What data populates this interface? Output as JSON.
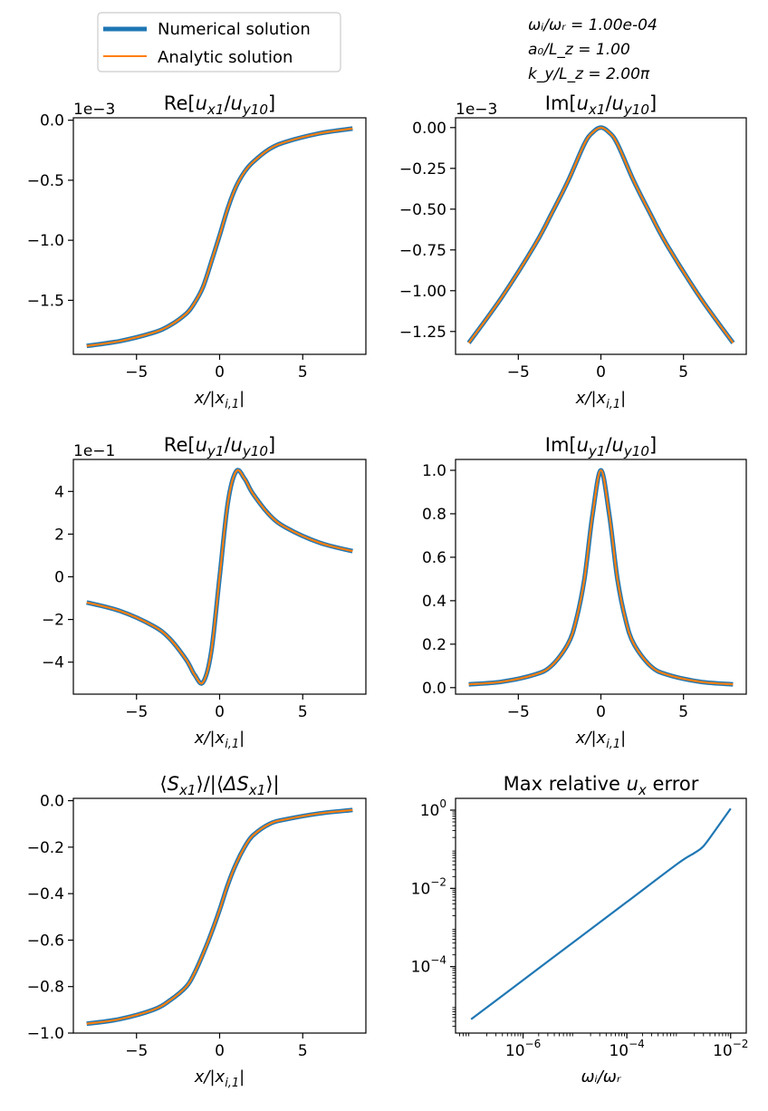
{
  "legend": {
    "items": [
      {
        "label": "Numerical solution",
        "color": "#1f77b4"
      },
      {
        "label": "Analytic solution",
        "color": "#ff7f0e"
      }
    ]
  },
  "params": [
    "ωᵢ/ωᵣ = 1.00e-04",
    "a₀/L_z = 1.00",
    "k_y/L_z = 2.00π"
  ],
  "colors": {
    "numerical": "#1f77b4",
    "analytic": "#ff7f0e"
  },
  "chart_data": [
    {
      "id": "re_ux",
      "type": "line",
      "title": "Re[u_x1/u_y10]",
      "xlabel": "x/|x_i,1|",
      "ylabel": "",
      "offset_label": "1e−3",
      "xlim": [
        -8.8,
        8.8
      ],
      "ylim": [
        -1.95,
        0.02
      ],
      "xticks": [
        -5,
        0,
        5
      ],
      "xtick_labels": [
        "−5",
        "0",
        "5"
      ],
      "yticks": [
        0.0,
        -0.5,
        -1.0,
        -1.5
      ],
      "ytick_labels": [
        "0.0",
        "−0.5",
        "−1.0",
        "−1.5"
      ],
      "x": [
        -8,
        -6,
        -4,
        -3,
        -2,
        -1.5,
        -1,
        -0.5,
        0,
        0.5,
        1,
        1.5,
        2,
        3,
        4,
        6,
        8
      ],
      "series": [
        {
          "name": "Numerical solution",
          "values": [
            -1.88,
            -1.84,
            -1.77,
            -1.71,
            -1.61,
            -1.52,
            -1.39,
            -1.18,
            -0.96,
            -0.73,
            -0.55,
            -0.43,
            -0.35,
            -0.24,
            -0.18,
            -0.11,
            -0.07
          ]
        },
        {
          "name": "Analytic solution",
          "values": [
            -1.88,
            -1.84,
            -1.77,
            -1.71,
            -1.61,
            -1.52,
            -1.39,
            -1.18,
            -0.96,
            -0.73,
            -0.55,
            -0.43,
            -0.35,
            -0.24,
            -0.18,
            -0.11,
            -0.07
          ]
        }
      ]
    },
    {
      "id": "im_ux",
      "type": "line",
      "title": "Im[u_x1/u_y10]",
      "xlabel": "x/|x_i,1|",
      "ylabel": "",
      "offset_label": "1e−3",
      "xlim": [
        -8.8,
        8.8
      ],
      "ylim": [
        -1.39,
        0.06
      ],
      "xticks": [
        -5,
        0,
        5
      ],
      "xtick_labels": [
        "−5",
        "0",
        "5"
      ],
      "yticks": [
        0.0,
        -0.25,
        -0.5,
        -0.75,
        -1.0,
        -1.25
      ],
      "ytick_labels": [
        "0.00",
        "−0.25",
        "−0.50",
        "−0.75",
        "−1.00",
        "−1.25"
      ],
      "x": [
        -8,
        -6,
        -4,
        -3,
        -2,
        -1,
        -0.5,
        0,
        0.5,
        1,
        2,
        3,
        4,
        6,
        8
      ],
      "series": [
        {
          "name": "Numerical solution",
          "values": [
            -1.32,
            -1.04,
            -0.72,
            -0.53,
            -0.33,
            -0.1,
            -0.03,
            0.0,
            -0.03,
            -0.1,
            -0.33,
            -0.53,
            -0.72,
            -1.04,
            -1.32
          ]
        },
        {
          "name": "Analytic solution",
          "values": [
            -1.32,
            -1.04,
            -0.72,
            -0.53,
            -0.33,
            -0.1,
            -0.03,
            0.0,
            -0.03,
            -0.1,
            -0.33,
            -0.53,
            -0.72,
            -1.04,
            -1.32
          ]
        }
      ]
    },
    {
      "id": "re_uy",
      "type": "line",
      "title": "Re[u_y1/u_y10]",
      "xlabel": "x/|x_i,1|",
      "ylabel": "",
      "offset_label": "1e−1",
      "xlim": [
        -8.8,
        8.8
      ],
      "ylim": [
        -5.5,
        5.5
      ],
      "xticks": [
        -5,
        0,
        5
      ],
      "xtick_labels": [
        "−5",
        "0",
        "5"
      ],
      "yticks": [
        4,
        2,
        0,
        -2,
        -4
      ],
      "ytick_labels": [
        "4",
        "2",
        "0",
        "−2",
        "−4"
      ],
      "x": [
        -8,
        -6,
        -4,
        -3,
        -2,
        -1.5,
        -1,
        -0.5,
        0,
        0.5,
        1,
        1.5,
        2,
        3,
        4,
        6,
        8
      ],
      "series": [
        {
          "name": "Numerical solution",
          "values": [
            -1.2,
            -1.6,
            -2.3,
            -2.9,
            -3.9,
            -4.6,
            -4.95,
            -3.5,
            0.0,
            3.5,
            4.95,
            4.6,
            3.9,
            2.9,
            2.3,
            1.6,
            1.2
          ]
        },
        {
          "name": "Analytic solution",
          "values": [
            -1.2,
            -1.6,
            -2.3,
            -2.9,
            -3.9,
            -4.6,
            -4.95,
            -3.5,
            0.0,
            3.5,
            4.95,
            4.6,
            3.9,
            2.9,
            2.3,
            1.6,
            1.2
          ]
        }
      ]
    },
    {
      "id": "im_uy",
      "type": "line",
      "title": "Im[u_y1/u_y10]",
      "xlabel": "x/|x_i,1|",
      "ylabel": "",
      "offset_label": "",
      "xlim": [
        -8.8,
        8.8
      ],
      "ylim": [
        -0.03,
        1.05
      ],
      "xticks": [
        -5,
        0,
        5
      ],
      "xtick_labels": [
        "−5",
        "0",
        "5"
      ],
      "yticks": [
        0.0,
        0.2,
        0.4,
        0.6,
        0.8,
        1.0
      ],
      "ytick_labels": [
        "0.0",
        "0.2",
        "0.4",
        "0.6",
        "0.8",
        "1.0"
      ],
      "x": [
        -8,
        -6,
        -4,
        -3,
        -2,
        -1.5,
        -1,
        -0.5,
        0,
        0.5,
        1,
        1.5,
        2,
        3,
        4,
        6,
        8
      ],
      "series": [
        {
          "name": "Numerical solution",
          "values": [
            0.015,
            0.027,
            0.06,
            0.1,
            0.2,
            0.31,
            0.5,
            0.8,
            1.0,
            0.8,
            0.5,
            0.31,
            0.2,
            0.1,
            0.06,
            0.027,
            0.015
          ]
        },
        {
          "name": "Analytic solution",
          "values": [
            0.015,
            0.027,
            0.06,
            0.1,
            0.2,
            0.31,
            0.5,
            0.8,
            1.0,
            0.8,
            0.5,
            0.31,
            0.2,
            0.1,
            0.06,
            0.027,
            0.015
          ]
        }
      ]
    },
    {
      "id": "poynting",
      "type": "line",
      "title": "⟨S_x1⟩/|⟨ΔS_x1⟩|",
      "xlabel": "x/|x_i,1|",
      "ylabel": "",
      "offset_label": "",
      "xlim": [
        -8.8,
        8.8
      ],
      "ylim": [
        -1.0,
        0.01
      ],
      "xticks": [
        -5,
        0,
        5
      ],
      "xtick_labels": [
        "−5",
        "0",
        "5"
      ],
      "yticks": [
        0.0,
        -0.2,
        -0.4,
        -0.6,
        -0.8,
        -1.0
      ],
      "ytick_labels": [
        "0.0",
        "−0.2",
        "−0.4",
        "−0.6",
        "−0.8",
        "−1.0"
      ],
      "x": [
        -8,
        -6,
        -4,
        -3,
        -2,
        -1.5,
        -1,
        -0.5,
        0,
        0.5,
        1,
        1.5,
        2,
        3,
        4,
        6,
        8
      ],
      "series": [
        {
          "name": "Numerical solution",
          "values": [
            -0.96,
            -0.94,
            -0.9,
            -0.86,
            -0.8,
            -0.74,
            -0.66,
            -0.57,
            -0.47,
            -0.36,
            -0.27,
            -0.2,
            -0.15,
            -0.1,
            -0.08,
            -0.055,
            -0.04
          ]
        },
        {
          "name": "Analytic solution",
          "values": [
            -0.96,
            -0.94,
            -0.9,
            -0.86,
            -0.8,
            -0.74,
            -0.66,
            -0.57,
            -0.47,
            -0.36,
            -0.27,
            -0.2,
            -0.15,
            -0.1,
            -0.08,
            -0.055,
            -0.04
          ]
        }
      ]
    },
    {
      "id": "max_error",
      "type": "line",
      "title": "Max relative u_x error",
      "xlabel": "ωᵢ/ωᵣ",
      "ylabel": "",
      "offset_label": "",
      "xscale": "log",
      "yscale": "log",
      "xlim": [
        5e-08,
        0.02
      ],
      "ylim": [
        2e-06,
        2.0
      ],
      "xticks": [
        1e-06,
        0.0001,
        0.01
      ],
      "xtick_labels": [
        [
          "10",
          "−6"
        ],
        [
          "10",
          "−4"
        ],
        [
          "10",
          "−2"
        ]
      ],
      "yticks": [
        1.0,
        0.01,
        0.0001
      ],
      "ytick_labels": [
        [
          "10",
          "0"
        ],
        [
          "10",
          "−2"
        ],
        [
          "10",
          "−4"
        ]
      ],
      "x": [
        1e-07,
        1e-06,
        1e-05,
        0.0001,
        0.001,
        0.002,
        0.003,
        0.005,
        0.01
      ],
      "series": [
        {
          "name": "",
          "values": [
            4.5e-06,
            4.5e-05,
            0.00045,
            0.0045,
            0.045,
            0.08,
            0.12,
            0.3,
            1.1
          ]
        }
      ]
    }
  ]
}
